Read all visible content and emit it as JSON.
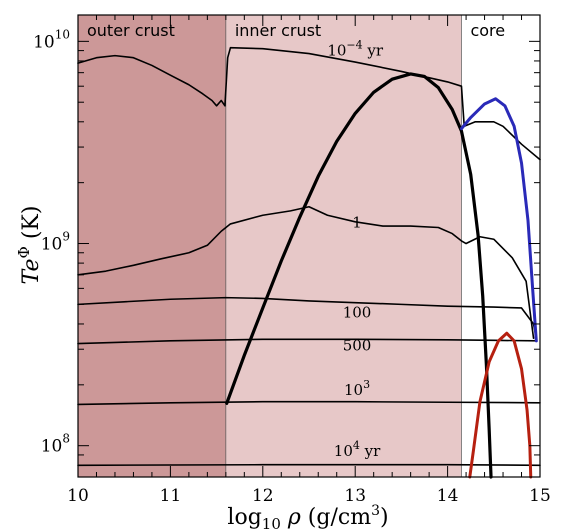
{
  "chart_data": {
    "type": "line",
    "title": "",
    "xlabel": "log10 ρ (g/cm³)",
    "ylabel": "Te^Φ (K)",
    "xlim": [
      10,
      15
    ],
    "ylim": [
      70000000,
      13500000000
    ],
    "yscale": "log",
    "xticks": [
      "10",
      "11",
      "12",
      "13",
      "14",
      "15"
    ],
    "yticks": [
      {
        "value": 100000000,
        "base": "10",
        "exp": "8"
      },
      {
        "value": 1000000000,
        "base": "10",
        "exp": "9"
      },
      {
        "value": 10000000000,
        "base": "10",
        "exp": "10"
      }
    ],
    "regions": [
      {
        "label": "outer crust",
        "x0": 10,
        "x1": 11.6,
        "color": "#cc9898"
      },
      {
        "label": "inner crust",
        "x0": 11.6,
        "x1": 14.15,
        "color": "#e7c8c8"
      },
      {
        "label": "core",
        "x0": 14.15,
        "x1": 15,
        "color": "#ffffff"
      }
    ],
    "series": [
      {
        "name": "10⁻⁴ yr",
        "color": "#000000",
        "width": 1.6,
        "points": [
          [
            10.0,
            7800000000.0
          ],
          [
            10.2,
            8300000000.0
          ],
          [
            10.4,
            8500000000.0
          ],
          [
            10.6,
            8300000000.0
          ],
          [
            10.8,
            7600000000.0
          ],
          [
            11.0,
            6800000000.0
          ],
          [
            11.2,
            6100000000.0
          ],
          [
            11.35,
            5500000000.0
          ],
          [
            11.45,
            5100000000.0
          ],
          [
            11.5,
            4800000000.0
          ],
          [
            11.55,
            5100000000.0
          ],
          [
            11.59,
            4800000000.0
          ],
          [
            11.62,
            8300000000.0
          ],
          [
            11.65,
            9300000000.0
          ],
          [
            12.0,
            9200000000.0
          ],
          [
            12.5,
            8700000000.0
          ],
          [
            13.0,
            7900000000.0
          ],
          [
            13.5,
            7100000000.0
          ],
          [
            14.0,
            6300000000.0
          ],
          [
            14.15,
            6000000000.0
          ],
          [
            14.18,
            3800000000.0
          ],
          [
            14.3,
            4000000000.0
          ],
          [
            14.5,
            4000000000.0
          ],
          [
            14.6,
            3800000000.0
          ],
          [
            14.8,
            3100000000.0
          ],
          [
            15.0,
            2600000000.0
          ]
        ]
      },
      {
        "name": "1",
        "color": "#000000",
        "width": 1.6,
        "points": [
          [
            10.0,
            700000000.0
          ],
          [
            10.3,
            730000000.0
          ],
          [
            10.6,
            780000000.0
          ],
          [
            10.9,
            840000000.0
          ],
          [
            11.2,
            900000000.0
          ],
          [
            11.4,
            980000000.0
          ],
          [
            11.55,
            1150000000.0
          ],
          [
            11.65,
            1250000000.0
          ],
          [
            12.0,
            1380000000.0
          ],
          [
            12.3,
            1450000000.0
          ],
          [
            12.5,
            1520000000.0
          ],
          [
            12.7,
            1380000000.0
          ],
          [
            13.0,
            1280000000.0
          ],
          [
            13.3,
            1220000000.0
          ],
          [
            13.6,
            1220000000.0
          ],
          [
            13.9,
            1200000000.0
          ],
          [
            14.05,
            1120000000.0
          ],
          [
            14.15,
            1030000000.0
          ],
          [
            14.2,
            1000000000.0
          ],
          [
            14.35,
            1080000000.0
          ],
          [
            14.5,
            1050000000.0
          ],
          [
            14.7,
            850000000.0
          ],
          [
            14.85,
            650000000.0
          ],
          [
            14.93,
            340000000.0
          ]
        ]
      },
      {
        "name": "100",
        "color": "#000000",
        "width": 1.6,
        "points": [
          [
            10.0,
            500000000.0
          ],
          [
            10.5,
            515000000.0
          ],
          [
            11.0,
            530000000.0
          ],
          [
            11.6,
            540000000.0
          ],
          [
            12.0,
            535000000.0
          ],
          [
            12.5,
            520000000.0
          ],
          [
            13.0,
            510000000.0
          ],
          [
            13.5,
            500000000.0
          ],
          [
            14.0,
            490000000.0
          ],
          [
            14.5,
            485000000.0
          ],
          [
            14.8,
            480000000.0
          ],
          [
            14.93,
            400000000.0
          ],
          [
            14.96,
            340000000.0
          ]
        ]
      },
      {
        "name": "500",
        "color": "#000000",
        "width": 1.6,
        "points": [
          [
            10.0,
            320000000.0
          ],
          [
            11.0,
            330000000.0
          ],
          [
            12.0,
            336000000.0
          ],
          [
            13.0,
            336000000.0
          ],
          [
            14.0,
            334000000.0
          ],
          [
            14.5,
            332000000.0
          ],
          [
            14.96,
            330000000.0
          ]
        ]
      },
      {
        "name": "10³",
        "color": "#000000",
        "width": 1.6,
        "points": [
          [
            10.0,
            160000000.0
          ],
          [
            11.0,
            163000000.0
          ],
          [
            12.0,
            165000000.0
          ],
          [
            13.0,
            165000000.0
          ],
          [
            14.0,
            164000000.0
          ],
          [
            15.0,
            163000000.0
          ]
        ]
      },
      {
        "name": "10⁴ yr",
        "color": "#000000",
        "width": 1.6,
        "points": [
          [
            10.0,
            80000000.0
          ],
          [
            12.0,
            80500000.0
          ],
          [
            14.0,
            80500000.0
          ],
          [
            15.0,
            80000000.0
          ]
        ]
      },
      {
        "name": "",
        "color": "#000000",
        "width": 3.2,
        "points": [
          [
            11.61,
            162000000.0
          ],
          [
            11.8,
            280000000.0
          ],
          [
            12.0,
            480000000.0
          ],
          [
            12.2,
            820000000.0
          ],
          [
            12.4,
            1350000000.0
          ],
          [
            12.6,
            2150000000.0
          ],
          [
            12.8,
            3200000000.0
          ],
          [
            13.0,
            4400000000.0
          ],
          [
            13.2,
            5600000000.0
          ],
          [
            13.4,
            6500000000.0
          ],
          [
            13.6,
            6900000000.0
          ],
          [
            13.75,
            6700000000.0
          ],
          [
            13.9,
            5900000000.0
          ],
          [
            14.05,
            4600000000.0
          ],
          [
            14.15,
            3600000000.0
          ],
          [
            14.25,
            2200000000.0
          ],
          [
            14.33,
            1100000000.0
          ],
          [
            14.38,
            550000000.0
          ],
          [
            14.42,
            250000000.0
          ],
          [
            14.45,
            120000000.0
          ],
          [
            14.47,
            70000000.0
          ]
        ]
      },
      {
        "name": "",
        "color": "#2a2ab8",
        "width": 3.0,
        "points": [
          [
            14.15,
            3700000000.0
          ],
          [
            14.25,
            4200000000.0
          ],
          [
            14.4,
            4900000000.0
          ],
          [
            14.52,
            5200000000.0
          ],
          [
            14.62,
            4800000000.0
          ],
          [
            14.72,
            3800000000.0
          ],
          [
            14.8,
            2500000000.0
          ],
          [
            14.87,
            1300000000.0
          ],
          [
            14.92,
            600000000.0
          ],
          [
            14.96,
            330000000.0
          ]
        ]
      },
      {
        "name": "",
        "color": "#b62010",
        "width": 3.0,
        "points": [
          [
            14.24,
            70000000.0
          ],
          [
            14.28,
            95000000.0
          ],
          [
            14.35,
            165000000.0
          ],
          [
            14.45,
            260000000.0
          ],
          [
            14.55,
            330000000.0
          ],
          [
            14.64,
            360000000.0
          ],
          [
            14.72,
            330000000.0
          ],
          [
            14.8,
            240000000.0
          ],
          [
            14.86,
            150000000.0
          ],
          [
            14.89,
            100000000.0
          ],
          [
            14.9,
            70000000.0
          ]
        ]
      }
    ],
    "annotations": [
      {
        "name": "10⁻⁴ yr",
        "base": "10",
        "exp": "−4",
        "tail": "yr",
        "x": 13.0,
        "y": 8500000000.0
      },
      {
        "name": "1",
        "text": "1",
        "x": 13.02,
        "y": 1200000000.0
      },
      {
        "name": "100",
        "text": "100",
        "x": 13.02,
        "y": 430000000.0
      },
      {
        "name": "500",
        "text": "500",
        "x": 13.02,
        "y": 295000000.0
      },
      {
        "name": "10³",
        "base": "10",
        "exp": "3",
        "x": 13.02,
        "y": 178000000.0
      },
      {
        "name": "10⁴ yr",
        "base": "10",
        "exp": "4",
        "tail": "yr",
        "x": 13.02,
        "y": 89000000.0
      }
    ]
  }
}
